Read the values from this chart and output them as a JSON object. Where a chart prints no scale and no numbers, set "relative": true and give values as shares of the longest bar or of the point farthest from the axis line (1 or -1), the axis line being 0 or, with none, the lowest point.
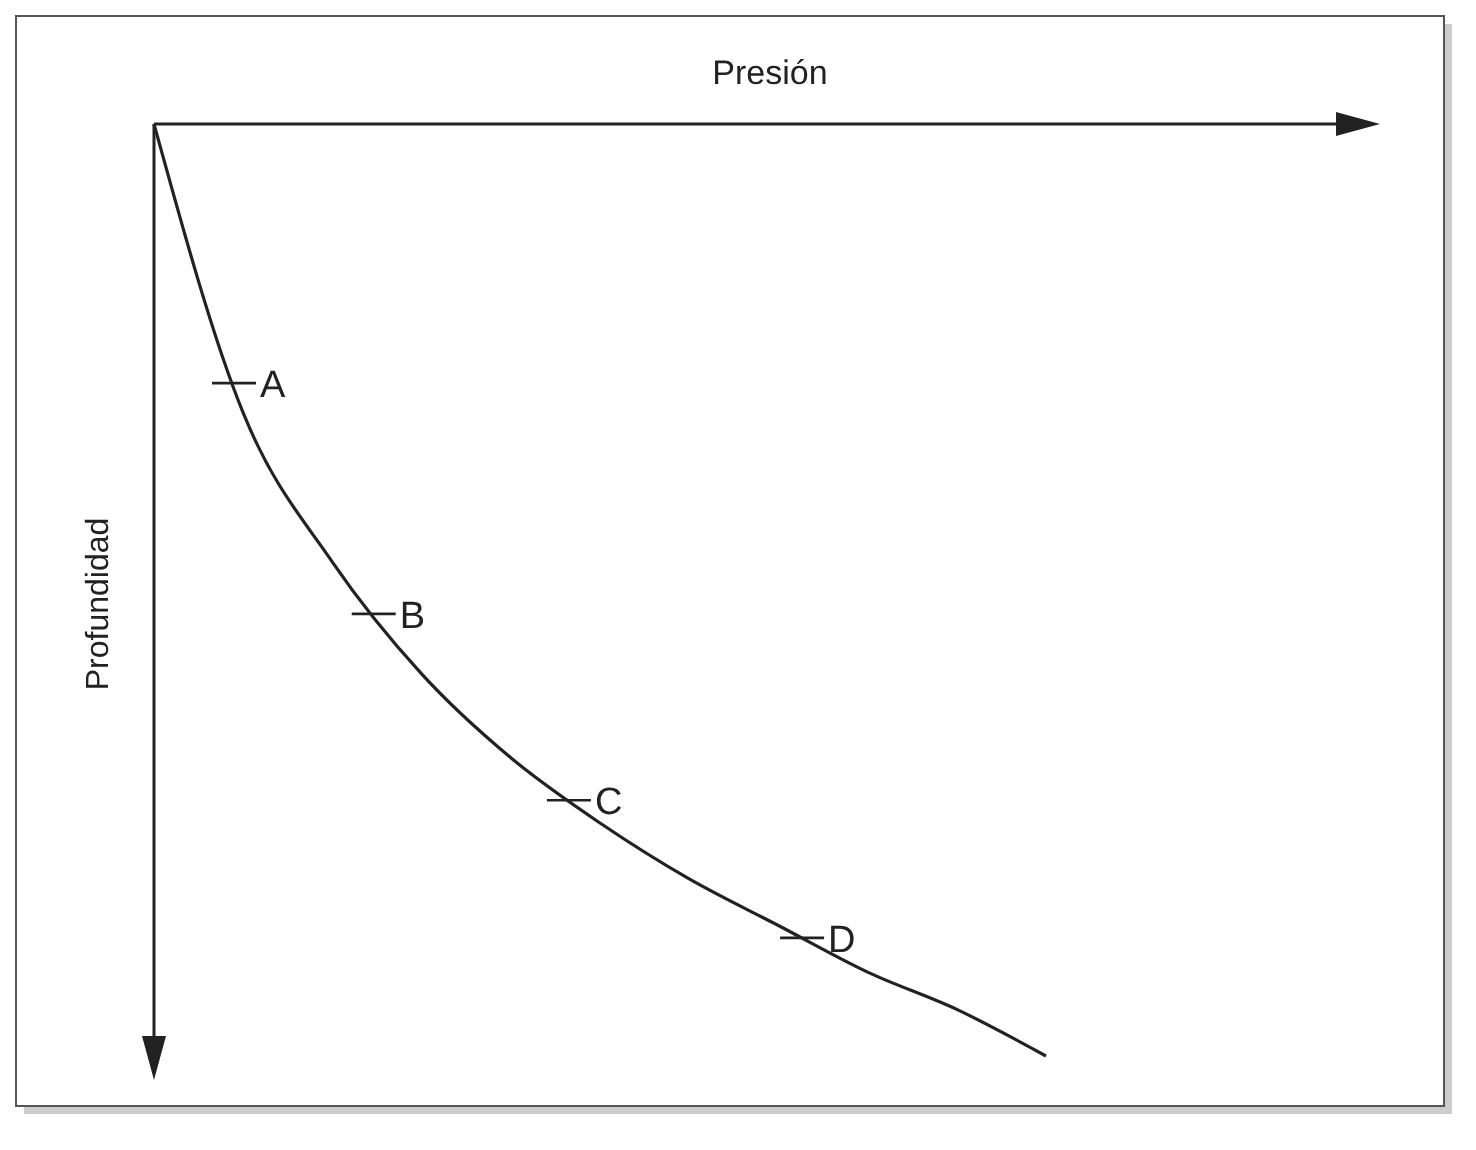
{
  "chart_data": {
    "type": "line",
    "relative": true,
    "xlabel": "Presión",
    "ylabel": "Profundidad",
    "color": "#222222",
    "categories": [
      null,
      null,
      null,
      null,
      null,
      null,
      null,
      null,
      null,
      null,
      null
    ],
    "values": [
      0,
      -0.31,
      -0.47,
      -0.59,
      -0.68,
      -0.75,
      -0.81,
      -0.86,
      -0.91,
      -0.95,
      -1
    ],
    "annotations": [
      "A",
      "B",
      "C",
      "D"
    ]
  }
}
